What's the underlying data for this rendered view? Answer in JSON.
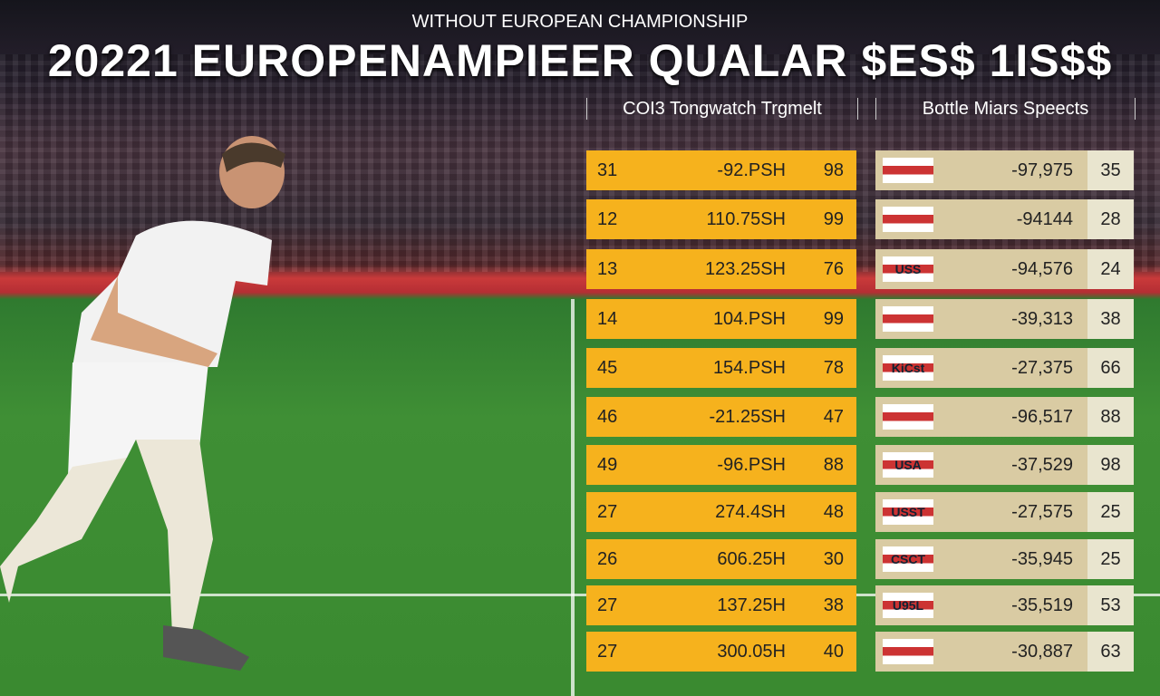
{
  "header": {
    "subtitle": "WITHOUT EUROPEAN CHAMPIONSHIP",
    "title": "20221 EUROPENAMPIEER QUALAR $ES$ 1IS$$"
  },
  "left_table": {
    "heading": "COI3 Tongwatch Trgmelt",
    "rows": [
      [
        "31",
        "-92.PSH",
        "98"
      ],
      [
        "12",
        "110.75SH",
        "99"
      ],
      [
        "13",
        "123.25SH",
        "76"
      ],
      [
        "14",
        "104.PSH",
        "99"
      ],
      [
        "45",
        "154.PSH",
        "78"
      ],
      [
        "46",
        "-21.25SH",
        "47"
      ],
      [
        "49",
        "-96.PSH",
        "88"
      ],
      [
        "27",
        "274.4SH",
        "48"
      ],
      [
        "26",
        "606.25H",
        "30"
      ],
      [
        "27",
        "137.25H",
        "38"
      ],
      [
        "27",
        "300.05H",
        "40"
      ]
    ]
  },
  "right_table": {
    "heading": "Bottle Miars Speects",
    "rows": [
      {
        "value": "-97,975",
        "score": "35"
      },
      {
        "value": "-94144",
        "score": "28"
      },
      {
        "flag": "USS",
        "value": "-94,576",
        "score": "24"
      },
      {
        "value": "-39,313",
        "score": "38"
      },
      {
        "flag": "KiCst",
        "value": "-27,375",
        "score": "66"
      },
      {
        "value": "-96,517",
        "score": "88"
      },
      {
        "flag": "USA",
        "value": "-37,529",
        "score": "98"
      },
      {
        "flag": "USST",
        "value": "-27,575",
        "score": "25"
      },
      {
        "flag": "CSCT",
        "value": "-35,945",
        "score": "25"
      },
      {
        "flag": "U95L",
        "value": "-35,519",
        "score": "53"
      },
      {
        "value": "-30,887",
        "score": "63"
      }
    ]
  }
}
